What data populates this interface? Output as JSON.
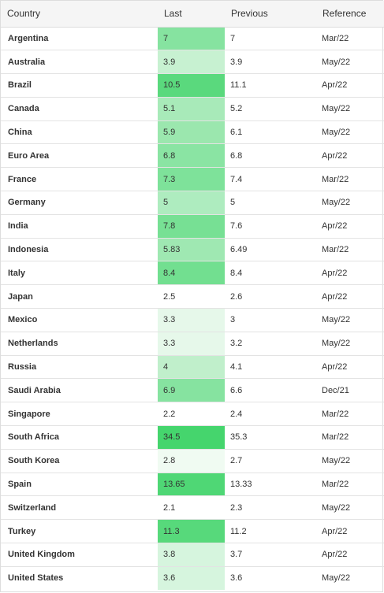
{
  "header": {
    "country": "Country",
    "last": "Last",
    "previous": "Previous",
    "reference": "Reference"
  },
  "rows": [
    {
      "country": "Argentina",
      "last": "7",
      "previous": "7",
      "reference": "Mar/22",
      "shade": "#86e3a0"
    },
    {
      "country": "Australia",
      "last": "3.9",
      "previous": "3.9",
      "reference": "May/22",
      "shade": "#c7f1d1"
    },
    {
      "country": "Brazil",
      "last": "10.5",
      "previous": "11.1",
      "reference": "Apr/22",
      "shade": "#5ad97d"
    },
    {
      "country": "Canada",
      "last": "5.1",
      "previous": "5.2",
      "reference": "May/22",
      "shade": "#a8eab9"
    },
    {
      "country": "China",
      "last": "5.9",
      "previous": "6.1",
      "reference": "May/22",
      "shade": "#9be7ae"
    },
    {
      "country": "Euro Area",
      "last": "6.8",
      "previous": "6.8",
      "reference": "Apr/22",
      "shade": "#8ae4a3"
    },
    {
      "country": "France",
      "last": "7.3",
      "previous": "7.4",
      "reference": "Mar/22",
      "shade": "#7ee29a"
    },
    {
      "country": "Germany",
      "last": "5",
      "previous": "5",
      "reference": "May/22",
      "shade": "#aeecbf"
    },
    {
      "country": "India",
      "last": "7.8",
      "previous": "7.6",
      "reference": "Apr/22",
      "shade": "#77e094"
    },
    {
      "country": "Indonesia",
      "last": "5.83",
      "previous": "6.49",
      "reference": "Mar/22",
      "shade": "#9fe8b2"
    },
    {
      "country": "Italy",
      "last": "8.4",
      "previous": "8.4",
      "reference": "Apr/22",
      "shade": "#72df90"
    },
    {
      "country": "Japan",
      "last": "2.5",
      "previous": "2.6",
      "reference": "Apr/22",
      "shade": "#ffffff"
    },
    {
      "country": "Mexico",
      "last": "3.3",
      "previous": "3",
      "reference": "May/22",
      "shade": "#e6f8ea"
    },
    {
      "country": "Netherlands",
      "last": "3.3",
      "previous": "3.2",
      "reference": "May/22",
      "shade": "#e6f8ea"
    },
    {
      "country": "Russia",
      "last": "4",
      "previous": "4.1",
      "reference": "Apr/22",
      "shade": "#c0efcb"
    },
    {
      "country": "Saudi Arabia",
      "last": "6.9",
      "previous": "6.6",
      "reference": "Dec/21",
      "shade": "#86e3a0"
    },
    {
      "country": "Singapore",
      "last": "2.2",
      "previous": "2.4",
      "reference": "Mar/22",
      "shade": "#ffffff"
    },
    {
      "country": "South Africa",
      "last": "34.5",
      "previous": "35.3",
      "reference": "Mar/22",
      "shade": "#45d56d"
    },
    {
      "country": "South Korea",
      "last": "2.8",
      "previous": "2.7",
      "reference": "May/22",
      "shade": "#f0fbf2"
    },
    {
      "country": "Spain",
      "last": "13.65",
      "previous": "13.33",
      "reference": "Mar/22",
      "shade": "#4fd775"
    },
    {
      "country": "Switzerland",
      "last": "2.1",
      "previous": "2.3",
      "reference": "May/22",
      "shade": "#ffffff"
    },
    {
      "country": "Turkey",
      "last": "11.3",
      "previous": "11.2",
      "reference": "Apr/22",
      "shade": "#57d97b"
    },
    {
      "country": "United Kingdom",
      "last": "3.8",
      "previous": "3.7",
      "reference": "Apr/22",
      "shade": "#d6f5de"
    },
    {
      "country": "United States",
      "last": "3.6",
      "previous": "3.6",
      "reference": "May/22",
      "shade": "#d6f5de"
    }
  ]
}
